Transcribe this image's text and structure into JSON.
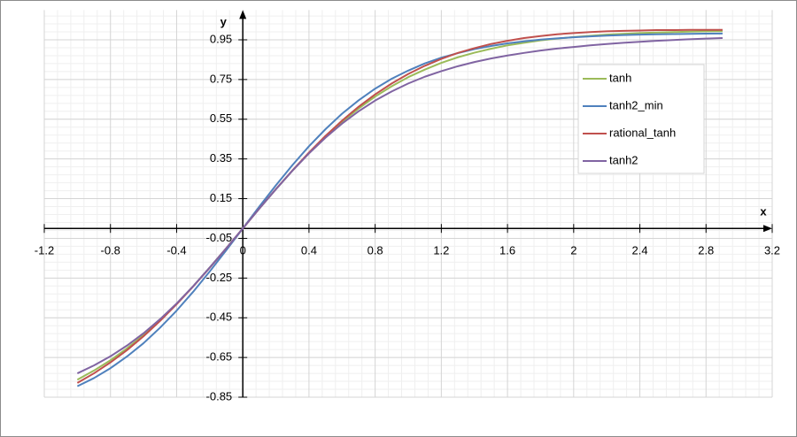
{
  "chart_data": {
    "type": "line",
    "x_label": "x",
    "y_label": "y",
    "x": [
      -1,
      -0.9,
      -0.8,
      -0.7,
      -0.6,
      -0.5,
      -0.4,
      -0.3,
      -0.2,
      -0.1,
      0,
      0.1,
      0.2,
      0.3,
      0.4,
      0.5,
      0.6,
      0.7,
      0.8,
      0.9,
      1,
      1.1,
      1.2,
      1.3,
      1.4,
      1.5,
      1.6,
      1.7,
      1.8,
      1.9,
      2,
      2.1,
      2.2,
      2.3,
      2.4,
      2.5,
      2.6,
      2.7,
      2.8,
      2.9
    ],
    "series": [
      {
        "name": "tanh",
        "color": "#9bbb59",
        "values": [
          -0.762,
          -0.716,
          -0.664,
          -0.604,
          -0.537,
          -0.462,
          -0.38,
          -0.291,
          -0.197,
          -0.1,
          0,
          0.1,
          0.197,
          0.291,
          0.38,
          0.462,
          0.537,
          0.604,
          0.664,
          0.716,
          0.762,
          0.8,
          0.834,
          0.862,
          0.885,
          0.905,
          0.922,
          0.935,
          0.947,
          0.956,
          0.964,
          0.97,
          0.976,
          0.98,
          0.984,
          0.987,
          0.989,
          0.991,
          0.993,
          0.994
        ]
      },
      {
        "name": "tanh2_min",
        "color": "#4f81bd",
        "values": [
          -0.795,
          -0.754,
          -0.704,
          -0.645,
          -0.578,
          -0.5,
          -0.414,
          -0.319,
          -0.217,
          -0.11,
          0,
          0.11,
          0.217,
          0.319,
          0.414,
          0.5,
          0.578,
          0.645,
          0.704,
          0.754,
          0.795,
          0.831,
          0.86,
          0.883,
          0.903,
          0.919,
          0.932,
          0.942,
          0.951,
          0.957,
          0.963,
          0.967,
          0.971,
          0.974,
          0.976,
          0.978,
          0.979,
          0.98,
          0.981,
          0.982
        ]
      },
      {
        "name": "rational_tanh",
        "color": "#c0504d",
        "values": [
          -0.778,
          -0.73,
          -0.675,
          -0.613,
          -0.543,
          -0.466,
          -0.382,
          -0.292,
          -0.198,
          -0.1,
          0,
          0.1,
          0.198,
          0.292,
          0.382,
          0.466,
          0.543,
          0.613,
          0.675,
          0.73,
          0.778,
          0.819,
          0.854,
          0.884,
          0.908,
          0.929,
          0.945,
          0.959,
          0.969,
          0.978,
          0.984,
          0.989,
          0.993,
          0.995,
          0.997,
          0.999,
          0.999,
          1,
          1,
          1
        ]
      },
      {
        "name": "tanh2",
        "color": "#8064a2",
        "values": [
          -0.73,
          -0.69,
          -0.644,
          -0.59,
          -0.528,
          -0.457,
          -0.378,
          -0.291,
          -0.197,
          -0.1,
          0,
          0.1,
          0.197,
          0.291,
          0.378,
          0.457,
          0.528,
          0.59,
          0.644,
          0.69,
          0.73,
          0.764,
          0.792,
          0.817,
          0.838,
          0.856,
          0.871,
          0.884,
          0.896,
          0.906,
          0.914,
          0.922,
          0.929,
          0.935,
          0.94,
          0.945,
          0.949,
          0.953,
          0.956,
          0.959
        ]
      }
    ],
    "xlim": [
      -1.2,
      3.2
    ],
    "ylim": [
      -0.85,
      1.1
    ],
    "xticks": [
      -1.2,
      -0.8,
      -0.4,
      0,
      0.4,
      0.8,
      1.2,
      1.6,
      2,
      2.4,
      2.8,
      3.2
    ],
    "yticks": [
      0.95,
      0.75,
      0.55,
      0.35,
      0.15,
      -0.05,
      -0.25,
      -0.45,
      -0.65,
      -0.85
    ],
    "grid": true,
    "legend": "upper-right"
  }
}
